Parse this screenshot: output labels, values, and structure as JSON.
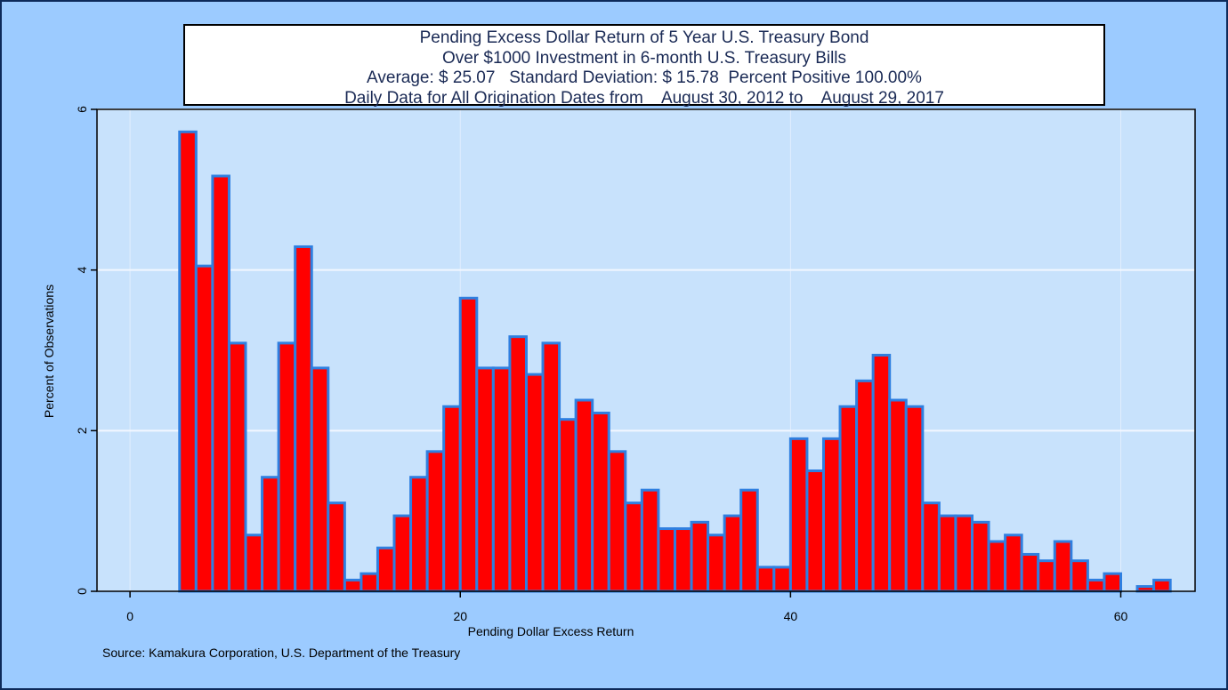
{
  "title_lines": [
    "Pending Excess Dollar Return of 5 Year U.S. Treasury Bond",
    "Over $1000 Investment in 6-month U.S. Treasury Bills",
    "Average: $ 25.07   Standard Deviation: $ 15.78  Percent Positive 100.00%",
    "Daily Data for All Origination Dates from    August 30, 2012 to    August 29, 2017"
  ],
  "source": "Source: Kamakura Corporation, U.S. Department of the Treasury",
  "colors": {
    "background": "#9ccbff",
    "plot_background": "#c8e2fc",
    "bar_fill": "#ff0000",
    "bar_edge": "#2f7fe0",
    "grid": "#f2f7ff"
  },
  "chart_data": {
    "type": "bar",
    "xlabel": "Pending Dollar Excess Return",
    "ylabel": "Percent of Observations",
    "xlim": [
      -2,
      64.5
    ],
    "ylim": [
      0,
      6
    ],
    "x_ticks": [
      0,
      20,
      40,
      60
    ],
    "y_ticks": [
      0,
      2,
      4,
      6
    ],
    "grid": "horizontal",
    "bin_width": 1,
    "bins": [
      {
        "x": 3.5,
        "value": 5.72
      },
      {
        "x": 4.5,
        "value": 4.05
      },
      {
        "x": 5.5,
        "value": 5.17
      },
      {
        "x": 6.5,
        "value": 3.09
      },
      {
        "x": 7.5,
        "value": 0.7
      },
      {
        "x": 8.5,
        "value": 1.42
      },
      {
        "x": 9.5,
        "value": 3.09
      },
      {
        "x": 10.5,
        "value": 4.29
      },
      {
        "x": 11.5,
        "value": 2.78
      },
      {
        "x": 12.5,
        "value": 1.1
      },
      {
        "x": 13.5,
        "value": 0.14
      },
      {
        "x": 14.5,
        "value": 0.22
      },
      {
        "x": 15.5,
        "value": 0.54
      },
      {
        "x": 16.5,
        "value": 0.94
      },
      {
        "x": 17.5,
        "value": 1.42
      },
      {
        "x": 18.5,
        "value": 1.74
      },
      {
        "x": 19.5,
        "value": 2.3
      },
      {
        "x": 20.5,
        "value": 3.65
      },
      {
        "x": 21.5,
        "value": 2.78
      },
      {
        "x": 22.5,
        "value": 2.78
      },
      {
        "x": 23.5,
        "value": 3.17
      },
      {
        "x": 24.5,
        "value": 2.7
      },
      {
        "x": 25.5,
        "value": 3.09
      },
      {
        "x": 26.5,
        "value": 2.14
      },
      {
        "x": 27.5,
        "value": 2.38
      },
      {
        "x": 28.5,
        "value": 2.22
      },
      {
        "x": 29.5,
        "value": 1.74
      },
      {
        "x": 30.5,
        "value": 1.1
      },
      {
        "x": 31.5,
        "value": 1.26
      },
      {
        "x": 32.5,
        "value": 0.78
      },
      {
        "x": 33.5,
        "value": 0.78
      },
      {
        "x": 34.5,
        "value": 0.86
      },
      {
        "x": 35.5,
        "value": 0.7
      },
      {
        "x": 36.5,
        "value": 0.94
      },
      {
        "x": 37.5,
        "value": 1.26
      },
      {
        "x": 38.5,
        "value": 0.3
      },
      {
        "x": 39.5,
        "value": 0.3
      },
      {
        "x": 40.5,
        "value": 1.9
      },
      {
        "x": 41.5,
        "value": 1.5
      },
      {
        "x": 42.5,
        "value": 1.9
      },
      {
        "x": 43.5,
        "value": 2.3
      },
      {
        "x": 44.5,
        "value": 2.62
      },
      {
        "x": 45.5,
        "value": 2.94
      },
      {
        "x": 46.5,
        "value": 2.38
      },
      {
        "x": 47.5,
        "value": 2.3
      },
      {
        "x": 48.5,
        "value": 1.1
      },
      {
        "x": 49.5,
        "value": 0.94
      },
      {
        "x": 50.5,
        "value": 0.94
      },
      {
        "x": 51.5,
        "value": 0.86
      },
      {
        "x": 52.5,
        "value": 0.62
      },
      {
        "x": 53.5,
        "value": 0.7
      },
      {
        "x": 54.5,
        "value": 0.46
      },
      {
        "x": 55.5,
        "value": 0.38
      },
      {
        "x": 56.5,
        "value": 0.62
      },
      {
        "x": 57.5,
        "value": 0.38
      },
      {
        "x": 58.5,
        "value": 0.14
      },
      {
        "x": 59.5,
        "value": 0.22
      },
      {
        "x": 61.5,
        "value": 0.06
      },
      {
        "x": 62.5,
        "value": 0.14
      }
    ]
  }
}
